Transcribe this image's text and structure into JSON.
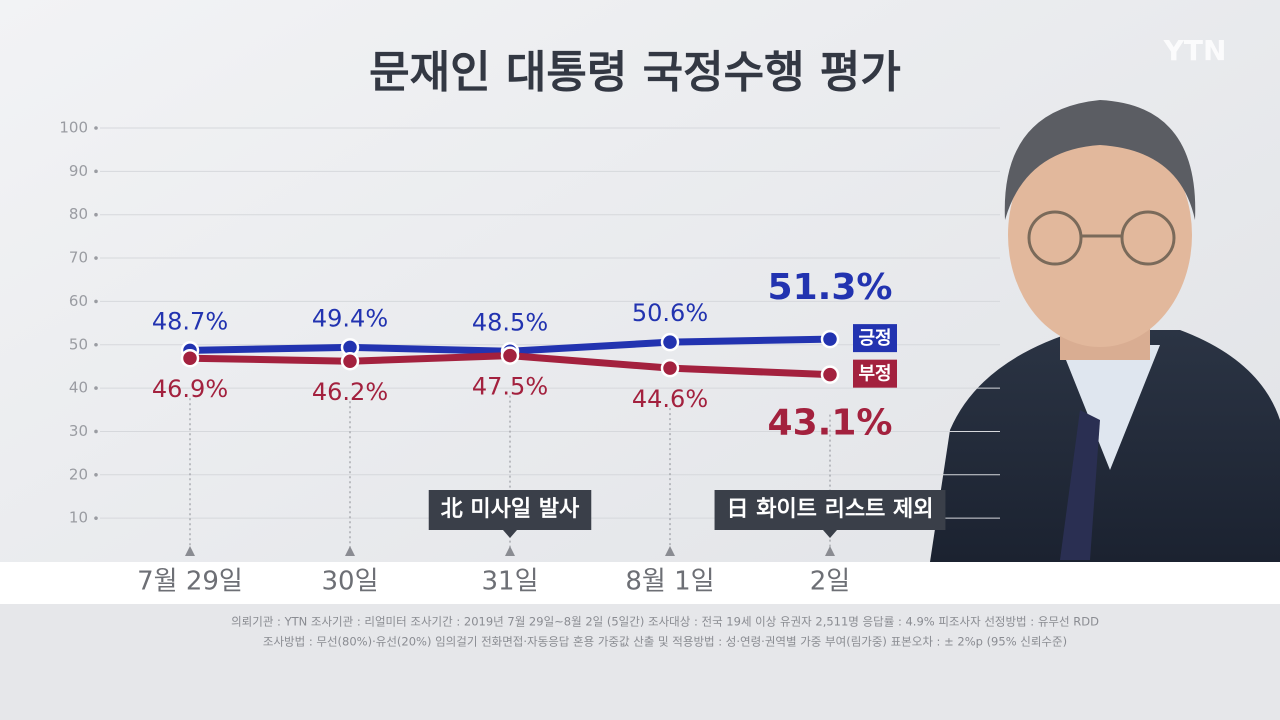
{
  "chart_data": {
    "type": "line",
    "title": "문재인 대통령 국정수행 평가",
    "logo": "YTN",
    "categories": [
      "7월 29일",
      "30일",
      "31일",
      "8월 1일",
      "2일"
    ],
    "series": [
      {
        "name": "긍정",
        "color": "#2233b0",
        "values": [
          48.7,
          49.4,
          48.5,
          50.6,
          51.3
        ],
        "value_labels": [
          "48.7%",
          "49.4%",
          "48.5%",
          "50.6%",
          "51.3%"
        ]
      },
      {
        "name": "부정",
        "color": "#a3213e",
        "values": [
          46.9,
          46.2,
          47.5,
          44.6,
          43.1
        ],
        "value_labels": [
          "46.9%",
          "46.2%",
          "47.5%",
          "44.6%",
          "43.1%"
        ]
      }
    ],
    "ylim": [
      0,
      100
    ],
    "yticks": [
      10,
      20,
      30,
      40,
      50,
      60,
      70,
      80,
      90,
      100
    ],
    "annotations": [
      {
        "category": "31일",
        "text": "北 미사일 발사"
      },
      {
        "category": "2일",
        "text": "日 화이트 리스트 제외"
      }
    ],
    "notes": [
      "의뢰기관 : YTN    조사기관 : 리얼미터    조사기간 : 2019년 7월 29일~8월 2일 (5일간)    조사대상 : 전국 19세 이상 유권자 2,511명    응답률 : 4.9%    피조사자 선정방법 : 유무선 RDD",
      "조사방법 : 무선(80%)·유선(20%) 임의걸기 전화면접·자동응답 혼용    가중값 산출 및 적용방법 : 성·연령·권역별 가중 부여(림가중)    표본오차 : ± 2%p (95% 신뢰수준)"
    ]
  }
}
